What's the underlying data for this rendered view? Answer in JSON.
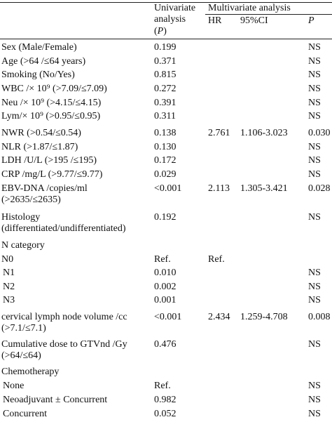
{
  "header": {
    "univariate_line1": "Univariate",
    "univariate_line2": "analysis",
    "univariate_line3": "(P)",
    "multivariate": "Multivariate analysis",
    "hr": "HR",
    "ci": "95%CI",
    "p": "P"
  },
  "rows": [
    {
      "label": "Sex (Male/Female)",
      "uni": "0.199",
      "hr": "",
      "ci": "",
      "p": "NS"
    },
    {
      "label": "Age (>64 /≤64 years)",
      "uni": "0.371",
      "hr": "",
      "ci": "",
      "p": "NS"
    },
    {
      "label": "Smoking (No/Yes)",
      "uni": "0.815",
      "hr": "",
      "ci": "",
      "p": "NS"
    },
    {
      "label": "WBC /× 10⁹ (>7.09/≤7.09)",
      "uni": "0.272",
      "hr": "",
      "ci": "",
      "p": "NS"
    },
    {
      "label": "Neu /× 10⁹ (>4.15/≤4.15)",
      "uni": "0.391",
      "hr": "",
      "ci": "",
      "p": "NS"
    },
    {
      "label": "Lym/× 10⁹ (>0.95/≤0.95)",
      "uni": "0.311",
      "hr": "",
      "ci": "",
      "p": "NS"
    },
    {
      "label": "NWR (>0.54/≤0.54)",
      "uni": "0.138",
      "hr": "2.761",
      "ci": "1.106-3.023",
      "p": "0.030"
    },
    {
      "label": "NLR (>1.87/≤1.87)",
      "uni": "0.130",
      "hr": "",
      "ci": "",
      "p": "NS"
    },
    {
      "label": "LDH /U/L (>195 /≤195)",
      "uni": "0.172",
      "hr": "",
      "ci": "",
      "p": "NS"
    },
    {
      "label": "CRP /mg/L (>9.77/≤9.77)",
      "uni": "0.029",
      "hr": "",
      "ci": "",
      "p": "NS"
    },
    {
      "label": "EBV-DNA /copies/ml",
      "label2": "(>2635/≤2635)",
      "uni": "<0.001",
      "hr": "2.113",
      "ci": "1.305-3.421",
      "p": "0.028"
    },
    {
      "label": "Histology",
      "label2": "(differentiated/undifferentiated)",
      "uni": "0.192",
      "hr": "",
      "ci": "",
      "p": "NS"
    },
    {
      "label": "N category",
      "uni": "",
      "hr": "",
      "ci": "",
      "p": ""
    },
    {
      "label": "N0",
      "uni": "Ref.",
      "hr": "Ref.",
      "ci": "",
      "p": ""
    },
    {
      "label": "N1",
      "uni": "0.010",
      "hr": "",
      "ci": "",
      "p": "NS"
    },
    {
      "label": "N2",
      "uni": "0.002",
      "hr": "",
      "ci": "",
      "p": "NS"
    },
    {
      "label": "N3",
      "uni": "0.001",
      "hr": "",
      "ci": "",
      "p": "NS"
    },
    {
      "label": "cervical lymph node volume /cc",
      "label2": "(>7.1/≤7.1)",
      "uni": "<0.001",
      "hr": "2.434",
      "ci": "1.259-4.708",
      "p": "0.008"
    },
    {
      "label": "Cumulative dose to GTVnd /Gy",
      "label2": "(>64/≤64)",
      "uni": "0.476",
      "hr": "",
      "ci": "",
      "p": "NS"
    },
    {
      "label": "Chemotherapy",
      "uni": "",
      "hr": "",
      "ci": "",
      "p": ""
    },
    {
      "label": "None",
      "uni": "Ref.",
      "hr": "",
      "ci": "",
      "p": "NS"
    },
    {
      "label": "Neoadjuvant ± Concurrent",
      "uni": "0.982",
      "hr": "",
      "ci": "",
      "p": "NS"
    },
    {
      "label": "Concurrent",
      "uni": "0.052",
      "hr": "",
      "ci": "",
      "p": "NS"
    }
  ]
}
